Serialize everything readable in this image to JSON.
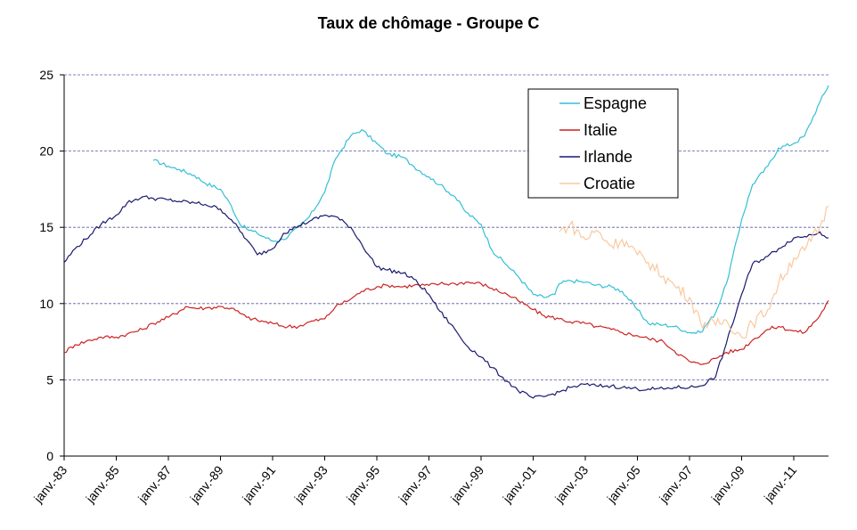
{
  "chart_data": {
    "type": "line",
    "title": "Taux de chômage - Groupe C",
    "xlabel": "",
    "ylabel": "",
    "x_range": [
      "1983-01",
      "2012-05"
    ],
    "ylim": [
      0,
      25
    ],
    "yticks": [
      0,
      5,
      10,
      15,
      20,
      25
    ],
    "xtick_labels": [
      "janv.-83",
      "janv.-85",
      "janv.-87",
      "janv.-89",
      "janv.-91",
      "janv.-93",
      "janv.-95",
      "janv.-97",
      "janv.-99",
      "janv.-01",
      "janv.-03",
      "janv.-05",
      "janv.-07",
      "janv.-09",
      "janv.-11"
    ],
    "xtick_dates": [
      "1983-01",
      "1985-01",
      "1987-01",
      "1989-01",
      "1991-01",
      "1993-01",
      "1995-01",
      "1997-01",
      "1999-01",
      "2001-01",
      "2003-01",
      "2005-01",
      "2007-01",
      "2009-01",
      "2011-01"
    ],
    "grid": "horizontal dashed",
    "legend_position": "top-right",
    "series": [
      {
        "name": "Espagne",
        "color": "#33BFD6",
        "points": [
          [
            "1986-06",
            19.4
          ],
          [
            "1987-01",
            19.0
          ],
          [
            "1987-06",
            18.8
          ],
          [
            "1988-01",
            18.4
          ],
          [
            "1988-06",
            17.9
          ],
          [
            "1989-01",
            17.5
          ],
          [
            "1989-06",
            16.4
          ],
          [
            "1989-10",
            15.2
          ],
          [
            "1990-01",
            14.9
          ],
          [
            "1990-06",
            14.6
          ],
          [
            "1991-01",
            14.1
          ],
          [
            "1991-06",
            14.2
          ],
          [
            "1992-01",
            15.0
          ],
          [
            "1992-06",
            15.7
          ],
          [
            "1993-01",
            17.3
          ],
          [
            "1993-06",
            19.5
          ],
          [
            "1994-01",
            21.0
          ],
          [
            "1994-06",
            21.4
          ],
          [
            "1995-01",
            20.5
          ],
          [
            "1995-06",
            19.8
          ],
          [
            "1996-01",
            19.6
          ],
          [
            "1996-06",
            19.0
          ],
          [
            "1997-01",
            18.3
          ],
          [
            "1997-06",
            17.8
          ],
          [
            "1998-01",
            17.0
          ],
          [
            "1998-06",
            16.0
          ],
          [
            "1999-01",
            15.2
          ],
          [
            "1999-06",
            13.5
          ],
          [
            "2000-01",
            12.5
          ],
          [
            "2000-06",
            11.8
          ],
          [
            "2001-01",
            10.6
          ],
          [
            "2001-06",
            10.4
          ],
          [
            "2001-11",
            10.6
          ],
          [
            "2002-01",
            11.3
          ],
          [
            "2002-06",
            11.5
          ],
          [
            "2003-01",
            11.4
          ],
          [
            "2003-06",
            11.2
          ],
          [
            "2004-01",
            11.1
          ],
          [
            "2004-06",
            10.8
          ],
          [
            "2005-01",
            9.6
          ],
          [
            "2005-06",
            8.7
          ],
          [
            "2006-01",
            8.6
          ],
          [
            "2006-06",
            8.5
          ],
          [
            "2007-01",
            8.1
          ],
          [
            "2007-06",
            8.1
          ],
          [
            "2008-01",
            9.4
          ],
          [
            "2008-06",
            11.3
          ],
          [
            "2009-01",
            15.5
          ],
          [
            "2009-06",
            17.8
          ],
          [
            "2010-01",
            19.0
          ],
          [
            "2010-06",
            20.2
          ],
          [
            "2011-01",
            20.5
          ],
          [
            "2011-06",
            21.0
          ],
          [
            "2012-01",
            23.2
          ],
          [
            "2012-05",
            24.3
          ]
        ]
      },
      {
        "name": "Italie",
        "color": "#CC2222",
        "points": [
          [
            "1983-01",
            6.8
          ],
          [
            "1983-06",
            7.3
          ],
          [
            "1984-01",
            7.6
          ],
          [
            "1984-06",
            7.8
          ],
          [
            "1985-01",
            7.8
          ],
          [
            "1985-06",
            8.0
          ],
          [
            "1986-01",
            8.3
          ],
          [
            "1986-06",
            8.7
          ],
          [
            "1987-01",
            9.1
          ],
          [
            "1987-06",
            9.5
          ],
          [
            "1987-09",
            9.8
          ],
          [
            "1988-01",
            9.7
          ],
          [
            "1988-06",
            9.7
          ],
          [
            "1989-01",
            9.8
          ],
          [
            "1989-06",
            9.7
          ],
          [
            "1990-01",
            9.1
          ],
          [
            "1990-06",
            8.9
          ],
          [
            "1991-01",
            8.7
          ],
          [
            "1991-06",
            8.5
          ],
          [
            "1992-01",
            8.5
          ],
          [
            "1992-06",
            8.8
          ],
          [
            "1993-01",
            9.0
          ],
          [
            "1993-06",
            9.8
          ],
          [
            "1994-01",
            10.3
          ],
          [
            "1994-06",
            10.8
          ],
          [
            "1995-01",
            11.1
          ],
          [
            "1995-06",
            11.2
          ],
          [
            "1996-01",
            11.1
          ],
          [
            "1996-06",
            11.2
          ],
          [
            "1997-01",
            11.2
          ],
          [
            "1997-06",
            11.3
          ],
          [
            "1998-01",
            11.3
          ],
          [
            "1998-06",
            11.4
          ],
          [
            "1999-01",
            11.3
          ],
          [
            "1999-06",
            11.0
          ],
          [
            "2000-01",
            10.6
          ],
          [
            "2000-06",
            10.2
          ],
          [
            "2001-01",
            9.6
          ],
          [
            "2001-06",
            9.2
          ],
          [
            "2002-01",
            9.0
          ],
          [
            "2002-06",
            8.8
          ],
          [
            "2003-01",
            8.7
          ],
          [
            "2003-06",
            8.5
          ],
          [
            "2004-01",
            8.3
          ],
          [
            "2004-06",
            8.1
          ],
          [
            "2005-01",
            7.9
          ],
          [
            "2005-06",
            7.7
          ],
          [
            "2006-01",
            7.5
          ],
          [
            "2006-06",
            6.9
          ],
          [
            "2007-01",
            6.2
          ],
          [
            "2007-06",
            6.0
          ],
          [
            "2008-01",
            6.4
          ],
          [
            "2008-06",
            6.8
          ],
          [
            "2009-01",
            7.0
          ],
          [
            "2009-06",
            7.6
          ],
          [
            "2010-01",
            8.3
          ],
          [
            "2010-06",
            8.5
          ],
          [
            "2011-01",
            8.2
          ],
          [
            "2011-06",
            8.1
          ],
          [
            "2012-01",
            9.2
          ],
          [
            "2012-05",
            10.2
          ]
        ]
      },
      {
        "name": "Irlande",
        "color": "#1A1A6E",
        "points": [
          [
            "1983-01",
            12.7
          ],
          [
            "1983-06",
            13.6
          ],
          [
            "1984-01",
            14.5
          ],
          [
            "1984-06",
            15.2
          ],
          [
            "1985-01",
            15.8
          ],
          [
            "1985-06",
            16.6
          ],
          [
            "1986-01",
            17.0
          ],
          [
            "1986-06",
            16.9
          ],
          [
            "1987-01",
            16.8
          ],
          [
            "1987-06",
            16.7
          ],
          [
            "1988-01",
            16.6
          ],
          [
            "1988-06",
            16.5
          ],
          [
            "1989-01",
            16.2
          ],
          [
            "1989-06",
            15.5
          ],
          [
            "1990-01",
            14.2
          ],
          [
            "1990-06",
            13.2
          ],
          [
            "1991-01",
            13.6
          ],
          [
            "1991-06",
            14.6
          ],
          [
            "1992-01",
            15.1
          ],
          [
            "1992-06",
            15.4
          ],
          [
            "1993-01",
            15.8
          ],
          [
            "1993-06",
            15.7
          ],
          [
            "1994-01",
            15.0
          ],
          [
            "1994-06",
            13.9
          ],
          [
            "1995-01",
            12.4
          ],
          [
            "1995-06",
            12.2
          ],
          [
            "1996-01",
            12.0
          ],
          [
            "1996-06",
            11.6
          ],
          [
            "1997-01",
            10.6
          ],
          [
            "1997-06",
            9.5
          ],
          [
            "1998-01",
            8.3
          ],
          [
            "1998-06",
            7.3
          ],
          [
            "1999-01",
            6.5
          ],
          [
            "1999-06",
            5.8
          ],
          [
            "2000-01",
            4.9
          ],
          [
            "2000-06",
            4.3
          ],
          [
            "2001-01",
            3.8
          ],
          [
            "2001-06",
            3.9
          ],
          [
            "2002-01",
            4.2
          ],
          [
            "2002-06",
            4.5
          ],
          [
            "2003-01",
            4.7
          ],
          [
            "2003-06",
            4.6
          ],
          [
            "2004-01",
            4.6
          ],
          [
            "2004-06",
            4.5
          ],
          [
            "2005-01",
            4.4
          ],
          [
            "2005-06",
            4.4
          ],
          [
            "2006-01",
            4.4
          ],
          [
            "2006-06",
            4.5
          ],
          [
            "2007-01",
            4.5
          ],
          [
            "2007-06",
            4.6
          ],
          [
            "2008-01",
            5.2
          ],
          [
            "2008-06",
            7.4
          ],
          [
            "2009-01",
            10.6
          ],
          [
            "2009-06",
            12.6
          ],
          [
            "2010-01",
            13.1
          ],
          [
            "2010-06",
            13.6
          ],
          [
            "2011-01",
            14.3
          ],
          [
            "2011-06",
            14.4
          ],
          [
            "2012-01",
            14.7
          ],
          [
            "2012-05",
            14.3
          ]
        ]
      },
      {
        "name": "Croatie",
        "color": "#F8C9A0",
        "points": [
          [
            "2002-01",
            14.7
          ],
          [
            "2002-06",
            15.2
          ],
          [
            "2003-01",
            14.2
          ],
          [
            "2003-06",
            14.8
          ],
          [
            "2004-01",
            13.8
          ],
          [
            "2004-06",
            14.2
          ],
          [
            "2005-01",
            13.2
          ],
          [
            "2005-06",
            12.7
          ],
          [
            "2006-01",
            11.8
          ],
          [
            "2006-06",
            11.2
          ],
          [
            "2007-01",
            10.4
          ],
          [
            "2007-06",
            8.8
          ],
          [
            "2008-01",
            8.6
          ],
          [
            "2008-06",
            8.9
          ],
          [
            "2009-01",
            7.8
          ],
          [
            "2009-06",
            8.7
          ],
          [
            "2010-01",
            9.6
          ],
          [
            "2010-06",
            11.3
          ],
          [
            "2011-01",
            13.0
          ],
          [
            "2011-06",
            13.5
          ],
          [
            "2012-01",
            15.0
          ],
          [
            "2012-05",
            16.4
          ]
        ]
      }
    ]
  }
}
